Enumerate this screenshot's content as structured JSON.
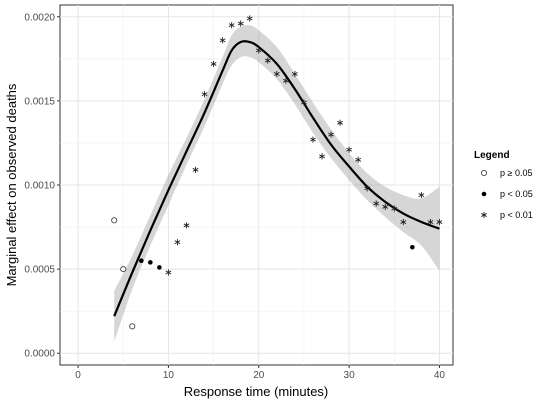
{
  "chart_data": {
    "type": "scatter",
    "title": "",
    "xlabel": "Response time (minutes)",
    "ylabel": "Marginal effect on observed deaths",
    "xlim": [
      -2,
      41.5
    ],
    "ylim": [
      -7e-05,
      0.00207
    ],
    "x_ticks": [
      0,
      10,
      20,
      30,
      40
    ],
    "x_tick_labels": [
      "0",
      "10",
      "20",
      "30",
      "40"
    ],
    "y_ticks": [
      0,
      0.0005,
      0.001,
      0.0015,
      0.002
    ],
    "y_tick_labels": [
      "0.0000",
      "0.0005",
      "0.0010",
      "0.0015",
      "0.0020"
    ],
    "grid": true,
    "legend": {
      "title": "Legend",
      "position": "right",
      "entries": [
        {
          "label": "p ≥ 0.05",
          "marker": "open-circle"
        },
        {
          "label": "p < 0.05",
          "marker": "filled-circle"
        },
        {
          "label": "p < 0.01",
          "marker": "asterisk"
        }
      ]
    },
    "points": [
      {
        "x": 4,
        "y": 0.00079,
        "sig": "open-circle"
      },
      {
        "x": 5,
        "y": 0.0005,
        "sig": "open-circle"
      },
      {
        "x": 6,
        "y": 0.00016,
        "sig": "open-circle"
      },
      {
        "x": 7,
        "y": 0.00055,
        "sig": "filled-circle"
      },
      {
        "x": 8,
        "y": 0.00054,
        "sig": "filled-circle"
      },
      {
        "x": 9,
        "y": 0.00051,
        "sig": "filled-circle"
      },
      {
        "x": 10,
        "y": 0.00048,
        "sig": "asterisk"
      },
      {
        "x": 11,
        "y": 0.00066,
        "sig": "asterisk"
      },
      {
        "x": 12,
        "y": 0.00076,
        "sig": "asterisk"
      },
      {
        "x": 13,
        "y": 0.00109,
        "sig": "asterisk"
      },
      {
        "x": 14,
        "y": 0.00154,
        "sig": "asterisk"
      },
      {
        "x": 15,
        "y": 0.00172,
        "sig": "asterisk"
      },
      {
        "x": 16,
        "y": 0.00186,
        "sig": "asterisk"
      },
      {
        "x": 17,
        "y": 0.00195,
        "sig": "asterisk"
      },
      {
        "x": 18,
        "y": 0.00196,
        "sig": "asterisk"
      },
      {
        "x": 19,
        "y": 0.00199,
        "sig": "asterisk"
      },
      {
        "x": 20,
        "y": 0.0018,
        "sig": "asterisk"
      },
      {
        "x": 21,
        "y": 0.00174,
        "sig": "asterisk"
      },
      {
        "x": 22,
        "y": 0.00166,
        "sig": "asterisk"
      },
      {
        "x": 23,
        "y": 0.00162,
        "sig": "asterisk"
      },
      {
        "x": 24,
        "y": 0.00166,
        "sig": "asterisk"
      },
      {
        "x": 25,
        "y": 0.00149,
        "sig": "asterisk"
      },
      {
        "x": 26,
        "y": 0.00127,
        "sig": "asterisk"
      },
      {
        "x": 27,
        "y": 0.00117,
        "sig": "asterisk"
      },
      {
        "x": 28,
        "y": 0.0013,
        "sig": "asterisk"
      },
      {
        "x": 29,
        "y": 0.00137,
        "sig": "asterisk"
      },
      {
        "x": 30,
        "y": 0.00121,
        "sig": "asterisk"
      },
      {
        "x": 31,
        "y": 0.00115,
        "sig": "asterisk"
      },
      {
        "x": 32,
        "y": 0.00098,
        "sig": "asterisk"
      },
      {
        "x": 33,
        "y": 0.00089,
        "sig": "asterisk"
      },
      {
        "x": 34,
        "y": 0.00087,
        "sig": "asterisk"
      },
      {
        "x": 35,
        "y": 0.00086,
        "sig": "asterisk"
      },
      {
        "x": 36,
        "y": 0.00078,
        "sig": "asterisk"
      },
      {
        "x": 37,
        "y": 0.00063,
        "sig": "filled-circle"
      },
      {
        "x": 38,
        "y": 0.00094,
        "sig": "asterisk"
      },
      {
        "x": 39,
        "y": 0.00078,
        "sig": "asterisk"
      },
      {
        "x": 40,
        "y": 0.00078,
        "sig": "asterisk"
      }
    ],
    "smooth_line": {
      "x": [
        4,
        6,
        8,
        10,
        12,
        14,
        16,
        17,
        18,
        19,
        20,
        22,
        24,
        26,
        28,
        30,
        32,
        34,
        36,
        38,
        40
      ],
      "y": [
        0.00022,
        0.00048,
        0.00073,
        0.00097,
        0.0012,
        0.00143,
        0.00168,
        0.0018,
        0.00185,
        0.00185,
        0.00182,
        0.00172,
        0.00157,
        0.0014,
        0.00124,
        0.00111,
        0.00099,
        0.0009,
        0.00083,
        0.00078,
        0.00074
      ],
      "lower": [
        7e-05,
        0.00038,
        0.00064,
        0.00088,
        0.00112,
        0.00135,
        0.0016,
        0.00171,
        0.00176,
        0.00176,
        0.00173,
        0.00163,
        0.00148,
        0.00131,
        0.00116,
        0.00103,
        0.00091,
        0.00081,
        0.00072,
        0.00064,
        0.00049
      ],
      "upper": [
        0.00037,
        0.00058,
        0.00082,
        0.00106,
        0.00128,
        0.00151,
        0.00176,
        0.00189,
        0.00194,
        0.00195,
        0.00192,
        0.00182,
        0.00166,
        0.00149,
        0.00133,
        0.00119,
        0.00107,
        0.00099,
        0.00094,
        0.00092,
        0.00099
      ]
    }
  }
}
